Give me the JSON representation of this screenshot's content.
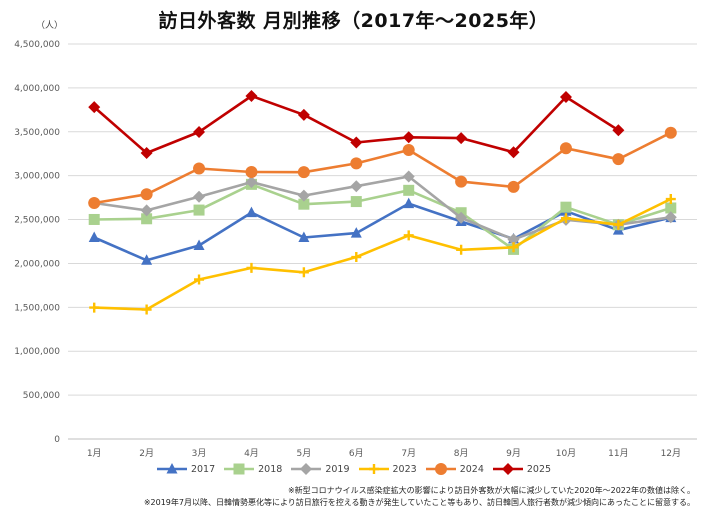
{
  "chart_data": {
    "type": "line",
    "title": "訪日外客数 月別推移（2017年～2025年）",
    "y_unit_label": "（人）",
    "xlabel": "",
    "ylabel": "",
    "categories": [
      "1月",
      "2月",
      "3月",
      "4月",
      "5月",
      "6月",
      "7月",
      "8月",
      "9月",
      "10月",
      "11月",
      "12月"
    ],
    "ylim": [
      0,
      4500000
    ],
    "yticks": [
      0,
      500000,
      1000000,
      1500000,
      2000000,
      2500000,
      3000000,
      3500000,
      4000000,
      4500000
    ],
    "ytick_labels": [
      "0",
      "500,000",
      "1,000,000",
      "1,500,000",
      "2,000,000",
      "2,500,000",
      "3,000,000",
      "3,500,000",
      "4,000,000",
      "4,500,000"
    ],
    "grid": true,
    "legend_position": "bottom",
    "series": [
      {
        "name": "2017",
        "color": "#4472c4",
        "marker": "triangle",
        "values": [
          2296000,
          2036000,
          2205000,
          2579000,
          2295000,
          2346000,
          2682000,
          2478000,
          2280000,
          2595000,
          2379000,
          2522000
        ]
      },
      {
        "name": "2018",
        "color": "#a9d18e",
        "marker": "square",
        "values": [
          2501000,
          2509000,
          2608000,
          2901000,
          2675000,
          2705000,
          2833000,
          2578000,
          2160000,
          2641000,
          2441000,
          2632000
        ]
      },
      {
        "name": "2019",
        "color": "#a5a5a5",
        "marker": "diamond",
        "values": [
          2689000,
          2604000,
          2760000,
          2927000,
          2773000,
          2880000,
          2991000,
          2520000,
          2273000,
          2497000,
          2441000,
          2526000
        ]
      },
      {
        "name": "2023",
        "color": "#ffc000",
        "marker": "plus",
        "values": [
          1497000,
          1475000,
          1817000,
          1949000,
          1899000,
          2073000,
          2320000,
          2156000,
          2184000,
          2516000,
          2441000,
          2734000
        ]
      },
      {
        "name": "2024",
        "color": "#ed7d31",
        "marker": "circle",
        "values": [
          2689000,
          2788000,
          3082000,
          3042000,
          3040000,
          3140000,
          3292000,
          2932000,
          2872000,
          3312000,
          3188000,
          3489000
        ]
      },
      {
        "name": "2025",
        "color": "#c00000",
        "marker": "diamond",
        "values": [
          3781000,
          3258000,
          3497000,
          3908000,
          3693000,
          3378000,
          3437000,
          3428000,
          3267000,
          3896000,
          3518000,
          null
        ]
      }
    ],
    "notes": [
      "※新型コロナウイルス感染症拡大の影響により訪日外客数が大幅に減少していた2020年～2022年の数値は除く。",
      "※2019年7月以降、日韓情勢悪化等により訪日旅行を控える動きが発生していたこと等もあり、訪日韓国人旅行者数が減少傾向にあったことに留意する。"
    ]
  }
}
